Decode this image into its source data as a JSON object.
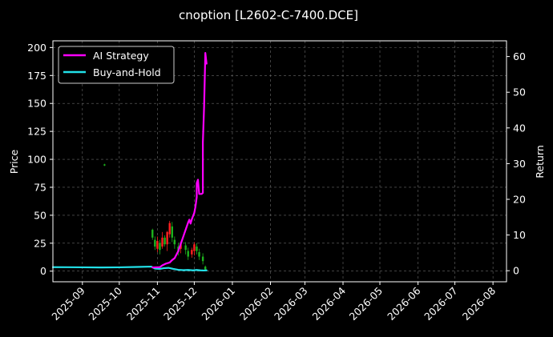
{
  "chart_data": {
    "type": "line",
    "title": "cnoption [L2602-C-7400.DCE]",
    "ylabel_left": "Price",
    "ylabel_right": "Return",
    "xlim": [
      "2025-08-08",
      "2026-08-12"
    ],
    "ylim_left": [
      -9.5,
      206
    ],
    "ylim_right": [
      -3.1,
      64.4
    ],
    "x_ticks": [
      "2025-09",
      "2025-10",
      "2025-11",
      "2025-12",
      "2026-01",
      "2026-02",
      "2026-03",
      "2026-04",
      "2026-05",
      "2026-06",
      "2026-07",
      "2026-08"
    ],
    "y_ticks_left": [
      0,
      25,
      50,
      75,
      100,
      125,
      150,
      175,
      200
    ],
    "y_ticks_right": [
      0,
      10,
      20,
      30,
      40,
      50,
      60
    ],
    "grid": true,
    "legend_position": "top-left",
    "colors": {
      "up": "#ff2020",
      "down": "#1db31d",
      "ai": "#ff00ff",
      "bh": "#22e0e8"
    },
    "series": [
      {
        "name": "AI Strategy",
        "axis": "right",
        "color": "#ff00ff",
        "points": [
          [
            "2025-10-28",
            0.9
          ],
          [
            "2025-10-31",
            0.95
          ],
          [
            "2025-11-03",
            1.0
          ],
          [
            "2025-11-05",
            1.5
          ],
          [
            "2025-11-08",
            2.0
          ],
          [
            "2025-11-11",
            2.3
          ],
          [
            "2025-11-13",
            3.0
          ],
          [
            "2025-11-15",
            3.5
          ],
          [
            "2025-11-18",
            5.5
          ],
          [
            "2025-11-20",
            7.5
          ],
          [
            "2025-11-22",
            9.5
          ],
          [
            "2025-11-24",
            11.5
          ],
          [
            "2025-11-26",
            13.5
          ],
          [
            "2025-11-27",
            14.3
          ],
          [
            "2025-11-28",
            13.2
          ],
          [
            "2025-11-29",
            14.4
          ],
          [
            "2025-12-01",
            16.2
          ],
          [
            "2025-12-02",
            18.0
          ],
          [
            "2025-12-03",
            20.6
          ],
          [
            "2025-12-03",
            24.5
          ],
          [
            "2025-12-04",
            25.5
          ],
          [
            "2025-12-05",
            21.5
          ],
          [
            "2025-12-07",
            21.5
          ],
          [
            "2025-12-08",
            21.8
          ],
          [
            "2025-12-08",
            36.0
          ],
          [
            "2025-12-09",
            46.0
          ],
          [
            "2025-12-10",
            61.0
          ],
          [
            "2025-12-11",
            58.0
          ]
        ]
      },
      {
        "name": "Buy-and-Hold",
        "axis": "right",
        "color": "#22e0e8",
        "points": [
          [
            "2025-08-08",
            1.0
          ],
          [
            "2025-08-20",
            0.98
          ],
          [
            "2025-09-01",
            0.95
          ],
          [
            "2025-09-15",
            0.9
          ],
          [
            "2025-10-01",
            0.95
          ],
          [
            "2025-10-15",
            1.05
          ],
          [
            "2025-10-27",
            1.15
          ],
          [
            "2025-10-30",
            0.6
          ],
          [
            "2025-11-03",
            0.5
          ],
          [
            "2025-11-06",
            0.7
          ],
          [
            "2025-11-10",
            0.8
          ],
          [
            "2025-11-14",
            0.5
          ],
          [
            "2025-11-18",
            0.25
          ],
          [
            "2025-11-22",
            0.15
          ],
          [
            "2025-11-26",
            0.2
          ],
          [
            "2025-11-30",
            0.1
          ],
          [
            "2025-12-03",
            0.2
          ],
          [
            "2025-12-06",
            0.1
          ],
          [
            "2025-12-09",
            0.05
          ],
          [
            "2025-12-11",
            0.1
          ]
        ]
      }
    ],
    "candles": [
      {
        "date": "2025-09-19",
        "open": 95.5,
        "close": 94.5,
        "high": 96,
        "low": 94
      },
      {
        "date": "2025-10-28",
        "open": 37,
        "close": 30,
        "high": 38,
        "low": 28
      },
      {
        "date": "2025-10-30",
        "open": 28,
        "close": 22,
        "high": 31,
        "low": 19
      },
      {
        "date": "2025-11-01",
        "open": 20,
        "close": 27,
        "high": 31,
        "low": 17
      },
      {
        "date": "2025-11-03",
        "open": 25,
        "close": 19,
        "high": 28,
        "low": 15
      },
      {
        "date": "2025-11-05",
        "open": 22,
        "close": 30,
        "high": 35,
        "low": 20
      },
      {
        "date": "2025-11-07",
        "open": 30,
        "close": 24,
        "high": 32,
        "low": 22
      },
      {
        "date": "2025-11-09",
        "open": 24,
        "close": 35,
        "high": 36,
        "low": 18
      },
      {
        "date": "2025-11-11",
        "open": 33,
        "close": 43,
        "high": 45,
        "low": 30
      },
      {
        "date": "2025-11-13",
        "open": 40,
        "close": 30,
        "high": 44,
        "low": 26
      },
      {
        "date": "2025-11-15",
        "open": 28,
        "close": 24,
        "high": 31,
        "low": 20
      },
      {
        "date": "2025-11-18",
        "open": 22,
        "close": 17,
        "high": 25,
        "low": 14
      },
      {
        "date": "2025-11-20",
        "open": 20,
        "close": 24,
        "high": 26,
        "low": 16
      },
      {
        "date": "2025-11-24",
        "open": 23,
        "close": 19,
        "high": 26,
        "low": 15
      },
      {
        "date": "2025-11-26",
        "open": 18,
        "close": 13,
        "high": 21,
        "low": 10
      },
      {
        "date": "2025-11-29",
        "open": 15,
        "close": 19,
        "high": 21,
        "low": 12
      },
      {
        "date": "2025-12-01",
        "open": 18,
        "close": 24,
        "high": 26,
        "low": 14
      },
      {
        "date": "2025-12-03",
        "open": 22,
        "close": 18,
        "high": 25,
        "low": 15
      },
      {
        "date": "2025-12-05",
        "open": 17,
        "close": 13,
        "high": 20,
        "low": 10
      },
      {
        "date": "2025-12-08",
        "open": 13,
        "close": 9,
        "high": 16,
        "low": 6
      },
      {
        "date": "2025-12-10",
        "open": 4,
        "close": 1.5,
        "high": 5,
        "low": 0
      }
    ]
  }
}
